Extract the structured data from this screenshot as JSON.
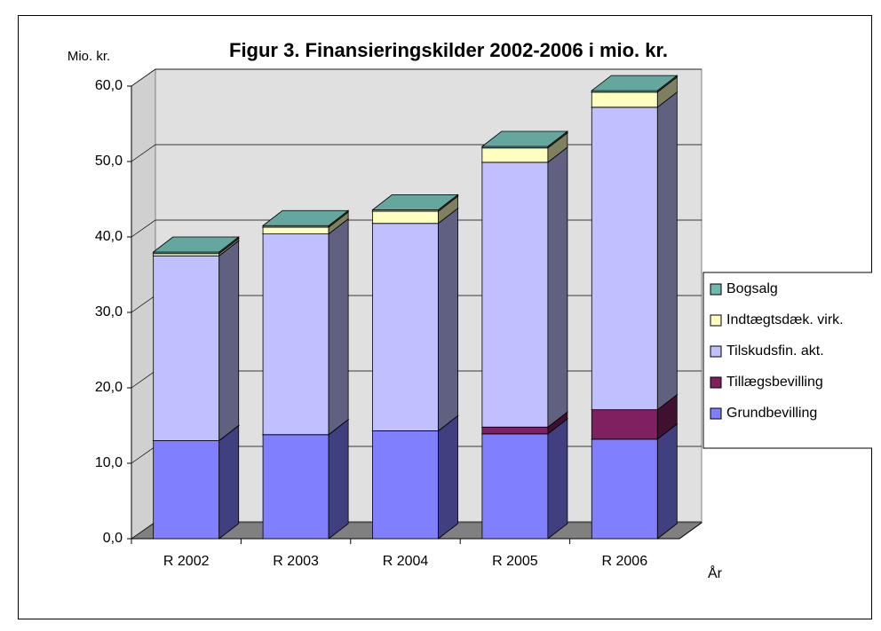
{
  "chart_data": {
    "type": "bar3d_stacked",
    "title": "Figur 3. Finansieringskilder 2002-2006 i mio. kr.",
    "y_label": "Mio. kr.",
    "x_label": "År",
    "categories": [
      "R 2002",
      "R 2003",
      "R 2004",
      "R 2005",
      "R 2006"
    ],
    "series": [
      {
        "name": "Grundbevilling",
        "color": "#8080ff",
        "values": [
          13.0,
          13.8,
          14.3,
          13.9,
          13.2
        ]
      },
      {
        "name": "Tillægsbevilling",
        "color": "#802060",
        "values": [
          0,
          0,
          0,
          0.9,
          3.9
        ]
      },
      {
        "name": "Tilskudsfin. akt.",
        "color": "#c0c0ff",
        "values": [
          24.5,
          26.6,
          27.5,
          35.1,
          40.1
        ]
      },
      {
        "name": "Indtægtsdæk. virk.",
        "color": "#ffffc0",
        "values": [
          0.3,
          0.9,
          1.6,
          1.9,
          2.0
        ]
      },
      {
        "name": "Bogsalg",
        "color": "#70b8b0",
        "values": [
          0.2,
          0.2,
          0.2,
          0.2,
          0.2
        ]
      }
    ],
    "ylim": [
      0,
      60
    ],
    "yticks": [
      {
        "value": 0,
        "label": "0,0"
      },
      {
        "value": 10,
        "label": "10,0"
      },
      {
        "value": 20,
        "label": "20,0"
      },
      {
        "value": 30,
        "label": "30,0"
      },
      {
        "value": 40,
        "label": "40,0"
      },
      {
        "value": 50,
        "label": "50,0"
      },
      {
        "value": 60,
        "label": "60,0"
      }
    ],
    "grid": true,
    "legend": "right"
  }
}
